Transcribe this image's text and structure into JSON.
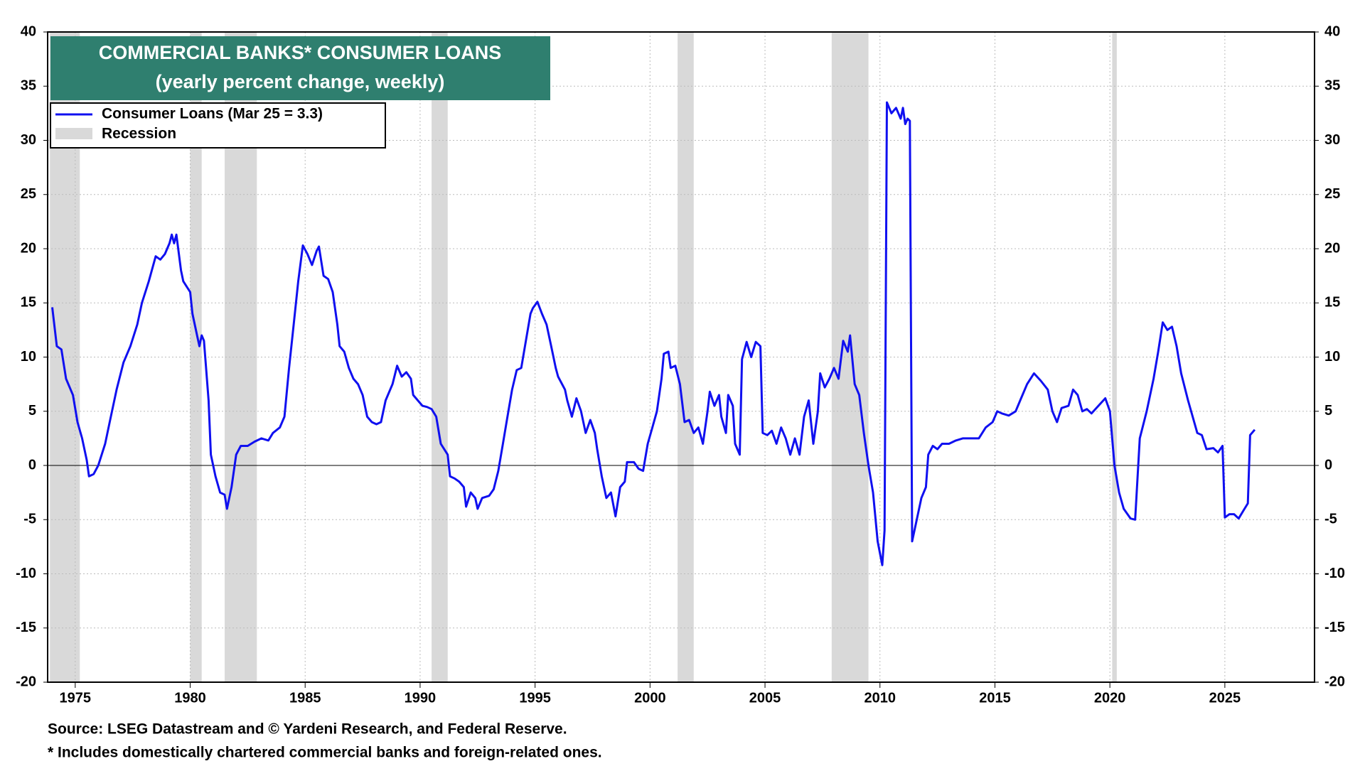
{
  "chart_data": {
    "type": "line",
    "title": "COMMERCIAL BANKS* CONSUMER LOANS",
    "subtitle": "(yearly percent change, weekly)",
    "source": "Source: LSEG Datastream and © Yardeni Research, and Federal Reserve.",
    "note": "* Includes domestically chartered commercial banks and foreign-related ones.",
    "recession_label": "Recession",
    "recession_color": "#d9d9d9",
    "recessions": [
      [
        1973.9,
        1975.2
      ],
      [
        1980.0,
        1980.5
      ],
      [
        1981.5,
        1982.9
      ],
      [
        1990.5,
        1991.2
      ],
      [
        2001.2,
        2001.9
      ],
      [
        2007.9,
        2009.5
      ],
      [
        2020.1,
        2020.3
      ]
    ],
    "xlim": [
      1973.8,
      2028.9
    ],
    "xticks": [
      1975,
      1980,
      1985,
      1990,
      1995,
      2000,
      2005,
      2010,
      2015,
      2020,
      2025
    ],
    "ylim": [
      -20,
      40
    ],
    "yticks": [
      -20,
      -15,
      -10,
      -5,
      0,
      5,
      10,
      15,
      20,
      25,
      30,
      35,
      40
    ],
    "grid": true,
    "x": [
      1974.0,
      1974.2,
      1974.4,
      1974.6,
      1974.9,
      1975.1,
      1975.3,
      1975.5,
      1975.6,
      1975.8,
      1976.0,
      1976.3,
      1976.5,
      1976.8,
      1977.1,
      1977.4,
      1977.7,
      1977.9,
      1978.2,
      1978.5,
      1978.7,
      1978.9,
      1979.1,
      1979.2,
      1979.3,
      1979.4,
      1979.6,
      1979.7,
      1980.0,
      1980.1,
      1980.3,
      1980.4,
      1980.5,
      1980.6,
      1980.8,
      1980.9,
      1981.1,
      1981.3,
      1981.5,
      1981.6,
      1981.8,
      1982.0,
      1982.2,
      1982.5,
      1982.8,
      1983.1,
      1983.4,
      1983.6,
      1983.9,
      1984.1,
      1984.3,
      1984.5,
      1984.7,
      1984.9,
      1985.1,
      1985.3,
      1985.5,
      1985.6,
      1985.8,
      1986.0,
      1986.2,
      1986.4,
      1986.5,
      1986.7,
      1986.9,
      1987.1,
      1987.3,
      1987.5,
      1987.7,
      1987.9,
      1988.1,
      1988.3,
      1988.5,
      1988.8,
      1989.0,
      1989.2,
      1989.4,
      1989.6,
      1989.7,
      1989.9,
      1990.1,
      1990.3,
      1990.5,
      1990.7,
      1990.9,
      1991.2,
      1991.3,
      1991.5,
      1991.7,
      1991.9,
      1992.0,
      1992.2,
      1992.4,
      1992.5,
      1992.7,
      1993.0,
      1993.2,
      1993.4,
      1993.6,
      1993.8,
      1994.0,
      1994.2,
      1994.4,
      1994.6,
      1994.8,
      1994.9,
      1995.1,
      1995.3,
      1995.5,
      1995.7,
      1995.9,
      1996.0,
      1996.3,
      1996.4,
      1996.6,
      1996.8,
      1997.0,
      1997.2,
      1997.4,
      1997.6,
      1997.7,
      1997.9,
      1998.1,
      1998.3,
      1998.5,
      1998.7,
      1998.9,
      1999.0,
      1999.3,
      1999.5,
      1999.7,
      1999.9,
      2000.1,
      2000.3,
      2000.5,
      2000.6,
      2000.8,
      2000.9,
      2001.1,
      2001.3,
      2001.5,
      2001.7,
      2001.9,
      2002.1,
      2002.3,
      2002.5,
      2002.6,
      2002.8,
      2003.0,
      2003.1,
      2003.3,
      2003.4,
      2003.6,
      2003.7,
      2003.9,
      2004.0,
      2004.2,
      2004.4,
      2004.6,
      2004.8,
      2004.9,
      2005.1,
      2005.3,
      2005.5,
      2005.7,
      2005.9,
      2006.1,
      2006.3,
      2006.5,
      2006.7,
      2006.9,
      2007.1,
      2007.3,
      2007.4,
      2007.6,
      2007.8,
      2008.0,
      2008.2,
      2008.4,
      2008.6,
      2008.7,
      2008.9,
      2009.1,
      2009.3,
      2009.5,
      2009.7,
      2009.9,
      2010.1,
      2010.2,
      2010.3,
      2010.5,
      2010.7,
      2010.9,
      2011.0,
      2011.1,
      2011.2,
      2011.3,
      2011.4,
      2011.6,
      2011.8,
      2012.0,
      2012.1,
      2012.3,
      2012.5,
      2012.7,
      2013.0,
      2013.3,
      2013.6,
      2014.0,
      2014.3,
      2014.6,
      2014.9,
      2015.1,
      2015.3,
      2015.6,
      2015.9,
      2016.1,
      2016.4,
      2016.7,
      2017.0,
      2017.3,
      2017.5,
      2017.7,
      2017.9,
      2018.2,
      2018.4,
      2018.6,
      2018.8,
      2019.0,
      2019.2,
      2019.5,
      2019.8,
      2020.0,
      2020.2,
      2020.4,
      2020.6,
      2020.9,
      2021.1,
      2021.3,
      2021.6,
      2021.9,
      2022.1,
      2022.3,
      2022.5,
      2022.7,
      2022.9,
      2023.1,
      2023.4,
      2023.6,
      2023.8,
      2024.0,
      2024.2,
      2024.5,
      2024.7,
      2024.9,
      2025.0,
      2025.2,
      2025.4,
      2025.6,
      2025.8,
      2026.0,
      2026.1,
      2026.3
    ],
    "series": [
      {
        "name": "Consumer Loans (Mar 25 = 3.3)",
        "color": "#1010f0",
        "values": [
          14.6,
          11,
          10.7,
          8,
          6.5,
          4,
          2.5,
          0.5,
          -1,
          -0.8,
          0,
          2,
          4,
          7,
          9.5,
          11,
          13,
          15,
          17,
          19.3,
          19,
          19.5,
          20.5,
          21.3,
          20.5,
          21.3,
          18,
          17,
          16,
          14,
          12,
          11,
          12,
          11.5,
          6,
          1,
          -1,
          -2.5,
          -2.7,
          -4,
          -2,
          1,
          1.8,
          1.8,
          2.2,
          2.5,
          2.3,
          3,
          3.5,
          4.5,
          9,
          13,
          17,
          20.3,
          19.5,
          18.5,
          19.8,
          20.2,
          17.5,
          17.2,
          16,
          13,
          11,
          10.5,
          9,
          8,
          7.5,
          6.5,
          4.5,
          4,
          3.8,
          4,
          6,
          7.5,
          9.2,
          8.2,
          8.6,
          8,
          6.5,
          6,
          5.5,
          5.4,
          5.2,
          4.5,
          2,
          1,
          -1,
          -1.2,
          -1.5,
          -2,
          -3.8,
          -2.5,
          -3,
          -4,
          -3,
          -2.8,
          -2.2,
          -0.5,
          2,
          4.5,
          7,
          8.8,
          9,
          11.5,
          14,
          14.5,
          15.1,
          14,
          13,
          11,
          9,
          8.2,
          7,
          6,
          4.5,
          6.2,
          5,
          3,
          4.2,
          3,
          1.5,
          -1,
          -3,
          -2.5,
          -4.7,
          -2,
          -1.5,
          0.3,
          0.3,
          -0.3,
          -0.5,
          2,
          3.5,
          5,
          8,
          10.3,
          10.5,
          9,
          9.2,
          7.5,
          4,
          4.2,
          3,
          3.5,
          2,
          5,
          6.8,
          5.5,
          6.5,
          4.5,
          3,
          6.5,
          5.5,
          2,
          1,
          9.8,
          11.4,
          10,
          11.4,
          11,
          3,
          2.8,
          3.2,
          2,
          3.5,
          2.5,
          1,
          2.5,
          1,
          4.5,
          6,
          2,
          5,
          8.5,
          7.2,
          8,
          9,
          8,
          11.5,
          10.5,
          12,
          7.5,
          6.5,
          3,
          0,
          -2.5,
          -7,
          -9.2,
          -6,
          33.5,
          32.5,
          33,
          32,
          33,
          31.5,
          32,
          31.8,
          -7,
          -5,
          -3,
          -2,
          1,
          1.8,
          1.5,
          2,
          2,
          2.3,
          2.5,
          2.5,
          2.5,
          3.5,
          4,
          5,
          4.8,
          4.6,
          5,
          6,
          7.5,
          8.5,
          7.8,
          7,
          5,
          4,
          5.3,
          5.5,
          7,
          6.5,
          5,
          5.2,
          4.8,
          5.5,
          6.2,
          5,
          0,
          -2.5,
          -4,
          -4.9,
          -5,
          2.5,
          5,
          8,
          10.5,
          13.2,
          12.5,
          12.8,
          11,
          8.5,
          6,
          4.5,
          3,
          2.8,
          1.5,
          1.6,
          1.2,
          1.8,
          -4.8,
          -4.5,
          -4.5,
          -4.9,
          -4.2,
          -3.5,
          2.8,
          3.3
        ]
      }
    ]
  }
}
